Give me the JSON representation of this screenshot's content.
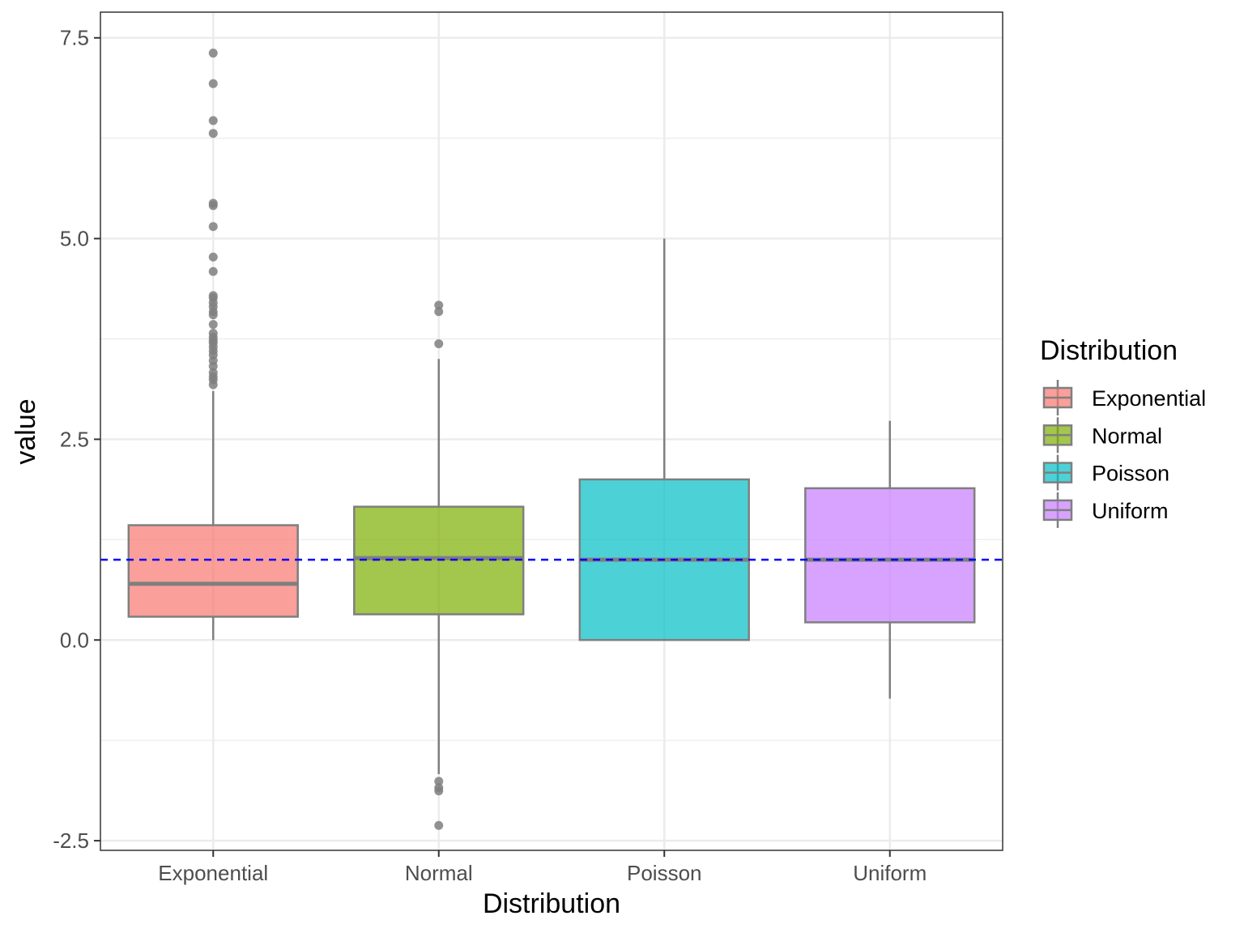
{
  "chart_data": {
    "type": "box",
    "title": "",
    "xlabel": "Distribution",
    "ylabel": "value",
    "ylim": [
      -2.62,
      7.82
    ],
    "y_ticks": [
      -2.5,
      0.0,
      2.5,
      5.0,
      7.5
    ],
    "y_tick_labels": [
      "-2.5",
      "0.0",
      "2.5",
      "5.0",
      "7.5"
    ],
    "y_minor_gridlines": [
      -1.25,
      1.25,
      3.75,
      6.25
    ],
    "categories": [
      "Exponential",
      "Normal",
      "Poisson",
      "Uniform"
    ],
    "grid": true,
    "reference_line": {
      "y": 1.0,
      "style": "dashed",
      "color": "#0000ff"
    },
    "legend": {
      "title": "Distribution",
      "position": "right",
      "entries": [
        "Exponential",
        "Normal",
        "Poisson",
        "Uniform"
      ]
    },
    "series": [
      {
        "name": "Exponential",
        "color": "#f8766d",
        "whisker_low": 0.0,
        "q1": 0.29,
        "median": 0.7,
        "q3": 1.43,
        "whisker_high": 3.1,
        "outliers": [
          7.31,
          6.93,
          6.47,
          6.31,
          5.44,
          5.41,
          5.15,
          4.77,
          4.59,
          4.29,
          4.26,
          4.2,
          4.15,
          4.09,
          4.05,
          3.93,
          3.82,
          3.77,
          3.73,
          3.7,
          3.65,
          3.6,
          3.55,
          3.48,
          3.41,
          3.33,
          3.28,
          3.24,
          3.18
        ]
      },
      {
        "name": "Normal",
        "color": "#7cae00",
        "whisker_low": -1.67,
        "q1": 0.32,
        "median": 1.02,
        "q3": 1.66,
        "whisker_high": 3.5,
        "outliers": [
          4.17,
          4.09,
          3.69,
          -1.76,
          -1.84,
          -1.88,
          -2.31
        ]
      },
      {
        "name": "Poisson",
        "color": "#00bfc4",
        "whisker_low": 0.0,
        "q1": 0.0,
        "median": 1.0,
        "q3": 2.0,
        "whisker_high": 5.0,
        "outliers": []
      },
      {
        "name": "Uniform",
        "color": "#c77cff",
        "whisker_low": -0.73,
        "q1": 0.22,
        "median": 1.0,
        "q3": 1.89,
        "whisker_high": 2.73,
        "outliers": []
      }
    ]
  }
}
